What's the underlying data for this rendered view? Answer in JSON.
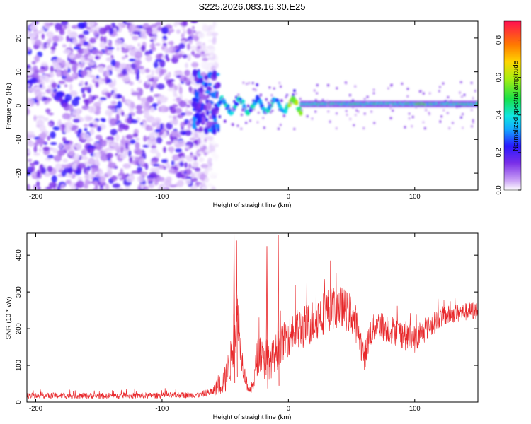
{
  "figure_title": "S225.2026.083.16.30.E25",
  "chart_data": [
    {
      "type": "heatmap",
      "title": "S225.2026.083.16.30.E25",
      "xlabel": "Height of straight line (km)",
      "ylabel": "Frequency (Hz)",
      "xlim": [
        -207,
        150
      ],
      "ylim": [
        -25,
        25
      ],
      "xticks": [
        -200,
        -100,
        0,
        100
      ],
      "yticks": [
        -20,
        -10,
        0,
        10,
        20
      ],
      "xticklabels": [
        "-200",
        "-100",
        "0",
        "100"
      ],
      "yticklabels": [
        "-20",
        "-10",
        "0",
        "10",
        "20"
      ],
      "colorbar": {
        "label": "Normalized spectral amplitude",
        "range": [
          0.0,
          0.9
        ],
        "ticks": [
          0.0,
          0.2,
          0.4,
          0.6,
          0.8
        ],
        "ticklabels": [
          "0.0",
          "0.2",
          "0.4",
          "0.6",
          "0.8"
        ],
        "colormap": "rainbow"
      },
      "features": [
        {
          "description": "broadband noise",
          "x_range": [
            -207,
            -65
          ],
          "freq_range": [
            -25,
            25
          ],
          "amplitude": 0.2
        },
        {
          "description": "signal onset",
          "x_range": [
            -75,
            -55
          ],
          "freq_range": [
            -8,
            10
          ],
          "amplitude": 0.25
        },
        {
          "description": "wandering carrier",
          "x_range": [
            -55,
            10
          ],
          "freq_center": 0,
          "amplitude": 0.5
        },
        {
          "description": "stable carrier",
          "x_range": [
            10,
            150
          ],
          "freq_center": 0.5,
          "amplitude": 0.45
        }
      ]
    },
    {
      "type": "line",
      "xlabel": "Height of straight line (km)",
      "ylabel": "SNR (10 * v/v)",
      "xlim": [
        -207,
        150
      ],
      "ylim": [
        0,
        460
      ],
      "xticks": [
        -200,
        -100,
        0,
        100
      ],
      "yticks": [
        0,
        100,
        200,
        300,
        400
      ],
      "xticklabels": [
        "-200",
        "-100",
        "0",
        "100"
      ],
      "yticklabels": [
        "0",
        "100",
        "200",
        "300",
        "400"
      ],
      "line_color": "#e8282b",
      "envelope": {
        "x": [
          -207,
          -150,
          -100,
          -70,
          -60,
          -50,
          -45,
          -42,
          -40,
          -38,
          -35,
          -32,
          -30,
          -27,
          -25,
          -22,
          -20,
          -18,
          -15,
          -12,
          -10,
          -5,
          0,
          5,
          10,
          20,
          30,
          40,
          50,
          55,
          60,
          62,
          65,
          70,
          80,
          90,
          100,
          110,
          120,
          130,
          140,
          150
        ],
        "y": [
          18,
          17,
          18,
          20,
          30,
          60,
          120,
          200,
          250,
          150,
          80,
          40,
          30,
          60,
          120,
          140,
          100,
          130,
          110,
          120,
          140,
          160,
          180,
          190,
          200,
          220,
          250,
          260,
          240,
          200,
          120,
          150,
          190,
          210,
          200,
          185,
          170,
          200,
          230,
          240,
          245,
          250
        ],
        "spread": [
          8,
          8,
          8,
          8,
          12,
          40,
          60,
          60,
          80,
          50,
          30,
          15,
          10,
          30,
          50,
          60,
          50,
          60,
          50,
          50,
          50,
          50,
          55,
          60,
          60,
          60,
          60,
          60,
          55,
          50,
          40,
          40,
          40,
          40,
          40,
          40,
          40,
          30,
          30,
          25,
          25,
          25
        ]
      },
      "spikes": [
        {
          "x": -43,
          "y": 460
        },
        {
          "x": -41,
          "y": 440
        },
        {
          "x": -17,
          "y": 425
        },
        {
          "x": -8,
          "y": 455
        }
      ]
    }
  ]
}
